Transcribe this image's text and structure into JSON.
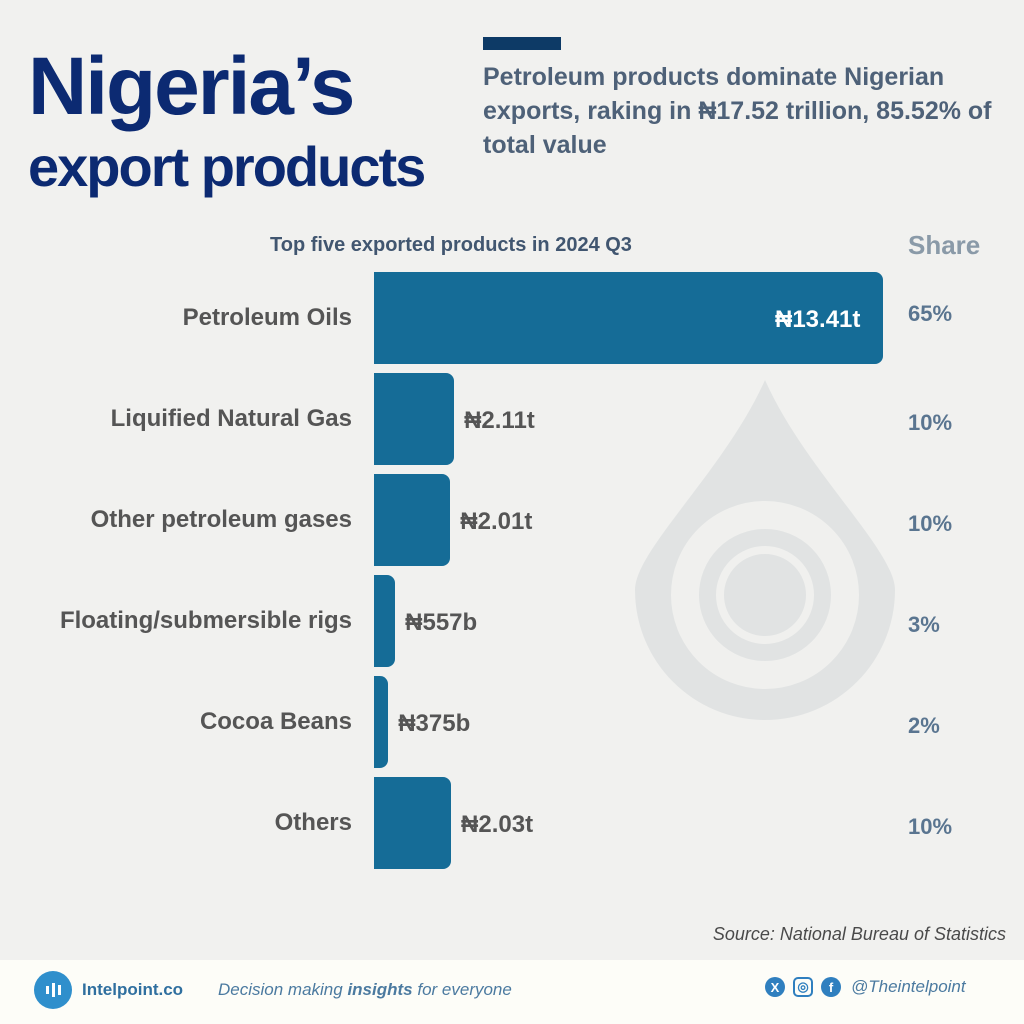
{
  "header": {
    "title_line1": "Nigeria’s",
    "title_line2": "export products",
    "subtitle": "Petroleum products dominate Nigerian exports, raking in ₦17.52 trillion, 85.52% of total value"
  },
  "chart_data": {
    "type": "bar",
    "orientation": "horizontal",
    "title": "Top five exported products in 2024 Q3",
    "share_header": "Share",
    "unit": "trillion naira",
    "categories": [
      "Petroleum Oils",
      "Liquified Natural Gas",
      "Other petroleum gases",
      "Floating/submersible rigs",
      "Cocoa Beans",
      "Others"
    ],
    "values": [
      13.41,
      2.11,
      2.01,
      0.557,
      0.375,
      2.03
    ],
    "value_labels": [
      "₦13.41t",
      "₦2.11t",
      "₦2.01t",
      "₦557b",
      "₦375b",
      "₦2.03t"
    ],
    "shares": [
      "65%",
      "10%",
      "10%",
      "3%",
      "2%",
      "10%"
    ],
    "bar_color": "#156c97"
  },
  "source": "Source: National Bureau of Statistics",
  "footer": {
    "brand": "Intelpoint.co",
    "tag_pre": "Decision making ",
    "tag_bold": "insights",
    "tag_post": " for everyone",
    "handle": "@Theintelpoint",
    "x_icon": "X",
    "fb_icon": "f"
  }
}
